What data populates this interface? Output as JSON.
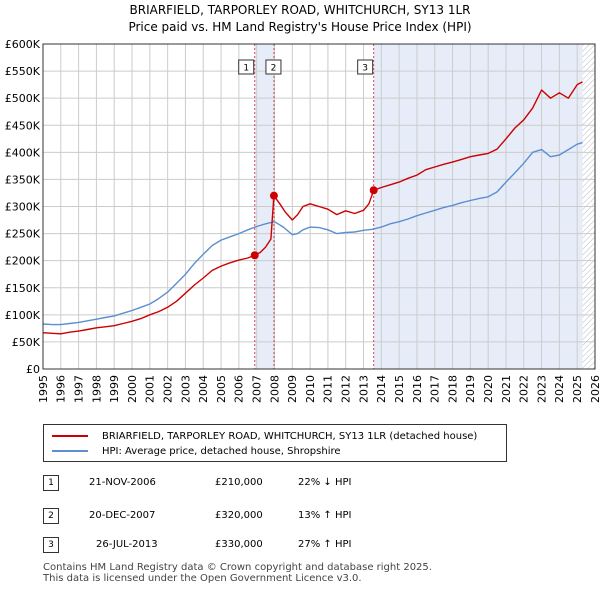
{
  "header": {
    "title": "BRIARFIELD, TARPORLEY ROAD, WHITCHURCH, SY13 1LR",
    "subtitle": "Price paid vs. HM Land Registry's House Price Index (HPI)"
  },
  "legend": {
    "red_label": "BRIARFIELD, TARPORLEY ROAD, WHITCHURCH, SY13 1LR (detached house)",
    "blue_label": "HPI: Average price, detached house, Shropshire"
  },
  "transactions": [
    {
      "num": "1",
      "date": "21-NOV-2006",
      "price": "£210,000",
      "hpi": "22% ↓ HPI"
    },
    {
      "num": "2",
      "date": "20-DEC-2007",
      "price": "£320,000",
      "hpi": "13% ↑ HPI"
    },
    {
      "num": "3",
      "date": "26-JUL-2013",
      "price": "£330,000",
      "hpi": "27% ↑ HPI"
    }
  ],
  "footer": {
    "line1": "Contains HM Land Registry data © Crown copyright and database right 2025.",
    "line2": "This data is licensed under the Open Government Licence v3.0."
  },
  "colors": {
    "red": "#cc0000",
    "blue": "#5b8fcf",
    "shade": "#e6ecf8",
    "grid": "#cccccc"
  },
  "chart_data": {
    "type": "line",
    "title": "BRIARFIELD, TARPORLEY ROAD, WHITCHURCH, SY13 1LR",
    "subtitle": "Price paid vs. HM Land Registry's House Price Index (HPI)",
    "xlabel": "",
    "ylabel": "",
    "xlim": [
      1995,
      2026
    ],
    "ylim": [
      0,
      600000
    ],
    "grid": true,
    "x_ticks": [
      1995,
      1996,
      1997,
      1998,
      1999,
      2000,
      2001,
      2002,
      2003,
      2004,
      2005,
      2006,
      2007,
      2008,
      2009,
      2010,
      2011,
      2012,
      2013,
      2014,
      2015,
      2016,
      2017,
      2018,
      2019,
      2020,
      2021,
      2022,
      2023,
      2024,
      2025,
      2026
    ],
    "y_ticks": [
      {
        "value": 0,
        "label": "£0"
      },
      {
        "value": 50000,
        "label": "£50K"
      },
      {
        "value": 100000,
        "label": "£100K"
      },
      {
        "value": 150000,
        "label": "£150K"
      },
      {
        "value": 200000,
        "label": "£200K"
      },
      {
        "value": 250000,
        "label": "£250K"
      },
      {
        "value": 300000,
        "label": "£300K"
      },
      {
        "value": 350000,
        "label": "£350K"
      },
      {
        "value": 400000,
        "label": "£400K"
      },
      {
        "value": 450000,
        "label": "£450K"
      },
      {
        "value": 500000,
        "label": "£500K"
      },
      {
        "value": 550000,
        "label": "£550K"
      },
      {
        "value": 600000,
        "label": "£600K"
      }
    ],
    "shaded_regions": [
      {
        "x0": 2006.89,
        "x1": 2007.97,
        "label": "sale 1-2"
      },
      {
        "x0": 2013.57,
        "x1": 2025.3,
        "label": "since sale 3"
      }
    ],
    "hatched_from": 2025.3,
    "markers": [
      {
        "label": "1",
        "x": 2006.89,
        "y": 210000
      },
      {
        "label": "2",
        "x": 2007.97,
        "y": 320000
      },
      {
        "label": "3",
        "x": 2013.57,
        "y": 330000
      }
    ],
    "series": [
      {
        "name": "BRIARFIELD, TARPORLEY ROAD, WHITCHURCH, SY13 1LR (detached house)",
        "color": "#cc0000",
        "x": [
          1995.0,
          1995.5,
          1996.0,
          1996.5,
          1997.0,
          1997.5,
          1998.0,
          1998.5,
          1999.0,
          1999.5,
          2000.0,
          2000.5,
          2001.0,
          2001.5,
          2002.0,
          2002.5,
          2003.0,
          2003.5,
          2004.0,
          2004.5,
          2005.0,
          2005.5,
          2006.0,
          2006.5,
          2006.89,
          2007.2,
          2007.5,
          2007.8,
          2007.97,
          2008.3,
          2008.6,
          2009.0,
          2009.3,
          2009.6,
          2010.0,
          2010.5,
          2011.0,
          2011.5,
          2012.0,
          2012.5,
          2013.0,
          2013.3,
          2013.57,
          2014.0,
          2014.5,
          2015.0,
          2015.5,
          2016.0,
          2016.5,
          2017.0,
          2017.5,
          2018.0,
          2018.5,
          2019.0,
          2019.5,
          2020.0,
          2020.5,
          2021.0,
          2021.5,
          2022.0,
          2022.5,
          2023.0,
          2023.5,
          2024.0,
          2024.5,
          2025.0,
          2025.3
        ],
        "values": [
          67000,
          66000,
          65000,
          68000,
          70000,
          73000,
          76000,
          78000,
          80000,
          84000,
          88000,
          93000,
          100000,
          106000,
          114000,
          125000,
          140000,
          155000,
          168000,
          182000,
          190000,
          196000,
          201000,
          205000,
          210000,
          215000,
          225000,
          240000,
          320000,
          305000,
          290000,
          275000,
          285000,
          300000,
          305000,
          300000,
          295000,
          285000,
          292000,
          287000,
          293000,
          305000,
          330000,
          335000,
          340000,
          345000,
          352000,
          358000,
          368000,
          373000,
          378000,
          382000,
          387000,
          392000,
          395000,
          398000,
          406000,
          425000,
          445000,
          460000,
          482000,
          515000,
          500000,
          510000,
          500000,
          525000,
          530000
        ]
      },
      {
        "name": "HPI: Average price, detached house, Shropshire",
        "color": "#5b8fcf",
        "x": [
          1995.0,
          1995.5,
          1996.0,
          1996.5,
          1997.0,
          1997.5,
          1998.0,
          1998.5,
          1999.0,
          1999.5,
          2000.0,
          2000.5,
          2001.0,
          2001.5,
          2002.0,
          2002.5,
          2003.0,
          2003.5,
          2004.0,
          2004.5,
          2005.0,
          2005.5,
          2006.0,
          2006.5,
          2007.0,
          2007.5,
          2008.0,
          2008.5,
          2009.0,
          2009.3,
          2009.6,
          2010.0,
          2010.5,
          2011.0,
          2011.5,
          2012.0,
          2012.5,
          2013.0,
          2013.5,
          2014.0,
          2014.5,
          2015.0,
          2015.5,
          2016.0,
          2016.5,
          2017.0,
          2017.5,
          2018.0,
          2018.5,
          2019.0,
          2019.5,
          2020.0,
          2020.5,
          2021.0,
          2021.5,
          2022.0,
          2022.5,
          2023.0,
          2023.5,
          2024.0,
          2024.5,
          2025.0,
          2025.3
        ],
        "values": [
          83000,
          82000,
          82000,
          84000,
          86000,
          89000,
          92000,
          95000,
          98000,
          103000,
          108000,
          114000,
          120000,
          130000,
          142000,
          158000,
          175000,
          195000,
          212000,
          228000,
          238000,
          244000,
          250000,
          257000,
          263000,
          268000,
          272000,
          262000,
          248000,
          250000,
          257000,
          262000,
          261000,
          257000,
          250000,
          252000,
          253000,
          256000,
          258000,
          262000,
          268000,
          272000,
          277000,
          283000,
          288000,
          293000,
          298000,
          302000,
          307000,
          311000,
          315000,
          318000,
          327000,
          345000,
          362000,
          380000,
          400000,
          405000,
          392000,
          395000,
          405000,
          415000,
          418000
        ]
      }
    ]
  }
}
